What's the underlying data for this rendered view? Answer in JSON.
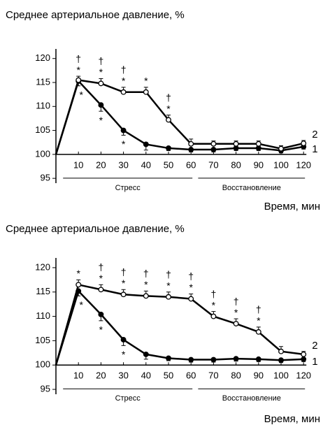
{
  "chart_data": [
    {
      "type": "line",
      "title": "Среднее артериальное давление, %",
      "x_label": "Время, мин",
      "categories": [
        null,
        "10",
        "20",
        "30",
        "40",
        "50",
        "60",
        "70",
        "80",
        "90",
        "100",
        "120"
      ],
      "ylim": [
        94,
        122
      ],
      "yticks": [
        95,
        100,
        105,
        110,
        115,
        120
      ],
      "x_axis_at": 100,
      "groups": [
        {
          "label": "Стресс",
          "start": 1,
          "end": 6
        },
        {
          "label": "Восстановление",
          "start": 7,
          "end": 11
        }
      ],
      "daggers": [
        null,
        "†",
        "†",
        "†",
        null,
        "†",
        null,
        null,
        null,
        null,
        null,
        null
      ],
      "series": [
        {
          "name": "1",
          "color": "#000000",
          "marker": "filled",
          "values": [
            100,
            115.3,
            110.3,
            105,
            102.1,
            101.3,
            101,
            101,
            101.3,
            101.3,
            100.8,
            101.6
          ],
          "errors": [
            null,
            1,
            1.3,
            1,
            1.2,
            0.5,
            0.5,
            0.5,
            0.5,
            0.5,
            0.5,
            0.5
          ],
          "stars": [
            null,
            "*",
            "*",
            "*",
            null,
            null,
            null,
            null,
            null,
            null,
            null,
            null
          ]
        },
        {
          "name": "2",
          "color": "#000000",
          "marker": "open",
          "values": [
            100,
            115.5,
            114.8,
            113,
            113,
            107.2,
            102.2,
            102.2,
            102.2,
            102.2,
            101.2,
            102.3
          ],
          "errors": [
            null,
            0.8,
            1,
            1,
            1,
            1,
            1,
            0.6,
            0.6,
            0.6,
            0.6,
            0.6
          ],
          "stars": [
            null,
            "*",
            "*",
            "*",
            "*",
            "*",
            null,
            null,
            null,
            null,
            null,
            null
          ]
        }
      ]
    },
    {
      "type": "line",
      "title": "Среднее артериальное давление, %",
      "x_label": "Время, мин",
      "categories": [
        null,
        "10",
        "20",
        "30",
        "40",
        "50",
        "60",
        "70",
        "80",
        "90",
        "100",
        "120"
      ],
      "ylim": [
        94,
        122
      ],
      "yticks": [
        95,
        100,
        105,
        110,
        115,
        120
      ],
      "x_axis_at": 100,
      "groups": [
        {
          "label": "Стресс",
          "start": 1,
          "end": 6
        },
        {
          "label": "Восстановление",
          "start": 7,
          "end": 11
        }
      ],
      "daggers": [
        null,
        null,
        "†",
        "†",
        "†",
        "†",
        "†",
        "†",
        "†",
        "†",
        null,
        null
      ],
      "series": [
        {
          "name": "1",
          "color": "#000000",
          "marker": "filled",
          "values": [
            100,
            115.2,
            110.4,
            105.2,
            102.2,
            101.4,
            101.1,
            101.1,
            101.3,
            101.2,
            101,
            101.2
          ],
          "errors": [
            null,
            1,
            1.3,
            1.2,
            1,
            0.5,
            0.5,
            0.5,
            0.5,
            0.5,
            0.5,
            0.5
          ],
          "stars": [
            null,
            "*",
            "*",
            "*",
            null,
            null,
            null,
            null,
            null,
            null,
            null,
            null
          ]
        },
        {
          "name": "2",
          "color": "#000000",
          "marker": "open",
          "values": [
            100,
            116.5,
            115.5,
            114.5,
            114.2,
            114,
            113.6,
            110,
            108.5,
            106.8,
            102.8,
            102.2
          ],
          "errors": [
            null,
            1,
            1,
            1,
            1,
            1,
            1,
            1,
            1,
            1,
            1,
            0.6
          ],
          "stars": [
            null,
            "*",
            "*",
            "*",
            "*",
            "*",
            "*",
            "*",
            "*",
            "*",
            null,
            null
          ]
        }
      ]
    }
  ]
}
